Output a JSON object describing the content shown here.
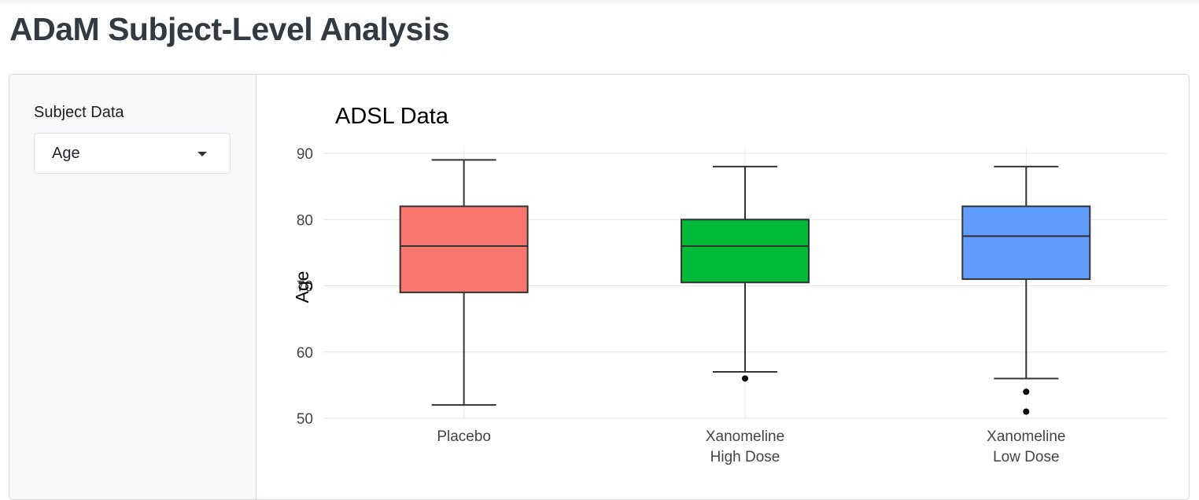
{
  "page": {
    "title": "ADaM Subject-Level Analysis"
  },
  "sidebar": {
    "input_label": "Subject Data",
    "select": {
      "value": "Age"
    }
  },
  "chart_data": {
    "type": "box",
    "title": "ADSL Data",
    "xlabel": "",
    "ylabel": "Age",
    "ylim": [
      50,
      90
    ],
    "yticks": [
      50,
      60,
      70,
      80,
      90
    ],
    "grid": true,
    "legend": "none",
    "categories": [
      [
        "Placebo"
      ],
      [
        "Xanomeline",
        "High Dose"
      ],
      [
        "Xanomeline",
        "Low Dose"
      ]
    ],
    "series": [
      {
        "category": "Placebo",
        "whisker_low": 52,
        "q1": 69,
        "median": 76,
        "q3": 82,
        "whisker_high": 89,
        "outliers": [],
        "color": "#F8766D"
      },
      {
        "category": "Xanomeline High Dose",
        "whisker_low": 57,
        "q1": 70.5,
        "median": 76,
        "q3": 80,
        "whisker_high": 88,
        "outliers": [
          56
        ],
        "color": "#00BA38"
      },
      {
        "category": "Xanomeline Low Dose",
        "whisker_low": 56,
        "q1": 71,
        "median": 77.5,
        "q3": 82,
        "whisker_high": 88,
        "outliers": [
          54,
          51
        ],
        "color": "#619CFF"
      }
    ]
  }
}
